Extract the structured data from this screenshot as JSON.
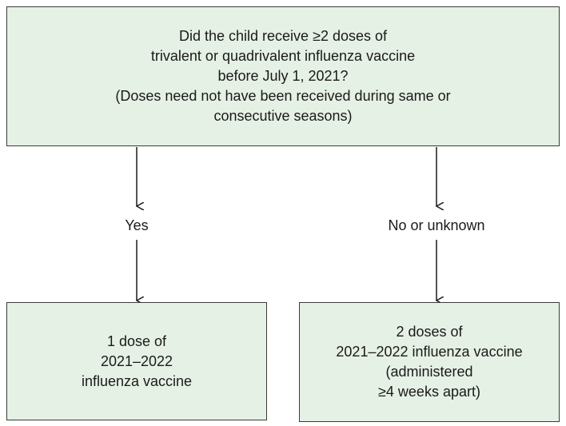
{
  "question": {
    "lines": [
      "Did the child receive ≥2 doses of",
      "trivalent or quadrivalent influenza vaccine",
      "before July 1, 2021?",
      "(Doses need not have been received during same or",
      "consecutive seasons)"
    ]
  },
  "branches": {
    "yes_label": "Yes",
    "no_label": "No or unknown"
  },
  "outcomes": {
    "one_dose": {
      "lines": [
        "1 dose of",
        "2021–2022",
        "influenza vaccine"
      ]
    },
    "two_doses": {
      "lines": [
        "2 doses of",
        "2021–2022 influenza vaccine",
        "(administered",
        "≥4 weeks apart)"
      ]
    }
  },
  "colors": {
    "box_fill": "#e6f1e5",
    "box_border": "#3a3a3a",
    "arrow": "#1a1a1a"
  }
}
